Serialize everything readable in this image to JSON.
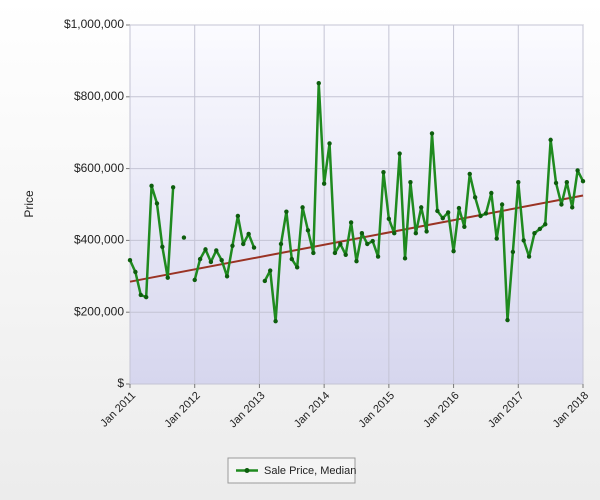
{
  "chart_data": {
    "type": "line",
    "y_label": "Price",
    "categories": [
      "Jan 2011",
      null,
      null,
      null,
      null,
      null,
      null,
      null,
      null,
      null,
      null,
      null,
      "Jan 2012",
      null,
      null,
      null,
      null,
      null,
      null,
      null,
      null,
      null,
      null,
      null,
      "Jan 2013",
      null,
      null,
      null,
      null,
      null,
      null,
      null,
      null,
      null,
      null,
      null,
      "Jan 2014",
      null,
      null,
      null,
      null,
      null,
      null,
      null,
      null,
      null,
      null,
      null,
      "Jan 2015",
      null,
      null,
      null,
      null,
      null,
      null,
      null,
      null,
      null,
      null,
      null,
      "Jan 2016",
      null,
      null,
      null,
      null,
      null,
      null,
      null,
      null,
      null,
      null,
      null,
      "Jan 2017",
      null,
      null,
      null,
      null,
      null,
      null,
      null,
      null,
      null,
      null,
      null,
      "Jan 2018"
    ],
    "series": [
      {
        "name": "Sale Price, Median",
        "color": "#1f8a1f",
        "values": [
          345000,
          312000,
          248000,
          242000,
          552000,
          503000,
          382000,
          296000,
          548000,
          null,
          408000,
          null,
          290000,
          348000,
          375000,
          340000,
          372000,
          345000,
          300000,
          385000,
          468000,
          390000,
          418000,
          380000,
          null,
          287000,
          316000,
          175000,
          390000,
          480000,
          348000,
          325000,
          492000,
          428000,
          365000,
          838000,
          558000,
          670000,
          365000,
          390000,
          360000,
          450000,
          342000,
          420000,
          390000,
          398000,
          355000,
          590000,
          460000,
          420000,
          642000,
          350000,
          562000,
          420000,
          492000,
          425000,
          698000,
          482000,
          462000,
          478000,
          370000,
          490000,
          438000,
          585000,
          520000,
          468000,
          475000,
          532000,
          405000,
          500000,
          178000,
          368000,
          562000,
          400000,
          355000,
          420000,
          432000,
          445000,
          680000,
          560000,
          500000,
          562000,
          492000,
          595000,
          565000
        ]
      }
    ],
    "trend": {
      "color": "#9a3324",
      "values": [
        285000,
        525000
      ]
    },
    "ylim": [
      0,
      1000000
    ],
    "yticks": [
      {
        "value": 0,
        "label": "$"
      },
      {
        "value": 200000,
        "label": "$200,000"
      },
      {
        "value": 400000,
        "label": "$400,000"
      },
      {
        "value": 600000,
        "label": "$600,000"
      },
      {
        "value": 800000,
        "label": "$800,000"
      },
      {
        "value": 1000000,
        "label": "$1,000,000"
      }
    ],
    "grid": true,
    "legend": "bottom"
  }
}
